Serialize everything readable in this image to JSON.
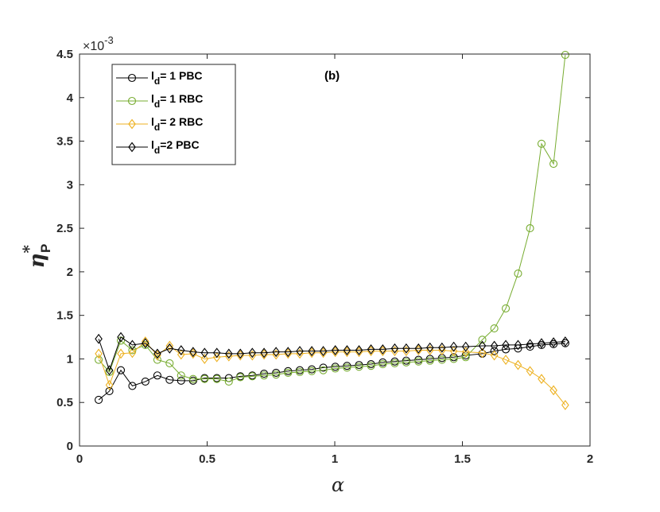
{
  "chart_data": {
    "type": "line",
    "title": "",
    "annotation": "(b)",
    "xlabel": "α",
    "ylabel": "η",
    "ylabel_sup": "*",
    "ylabel_sub": "P",
    "exponent_label": "×10",
    "exponent_power": "-3",
    "xlim": [
      0,
      2
    ],
    "ylim": [
      0,
      4.5
    ],
    "xticks": [
      0,
      0.5,
      1,
      1.5,
      2
    ],
    "xtick_labels": [
      "0",
      "0.5",
      "1",
      "1.5",
      "2"
    ],
    "yticks": [
      0,
      0.5,
      1,
      1.5,
      2,
      2.5,
      3,
      3.5,
      4,
      4.5
    ],
    "ytick_labels": [
      "0",
      "0.5",
      "1",
      "1.5",
      "2",
      "2.5",
      "3",
      "3.5",
      "4",
      "4.5"
    ],
    "grid": false,
    "legend_position": "top-left",
    "x": [
      0.075,
      0.117,
      0.162,
      0.207,
      0.258,
      0.305,
      0.353,
      0.398,
      0.445,
      0.49,
      0.538,
      0.585,
      0.63,
      0.677,
      0.723,
      0.77,
      0.817,
      0.863,
      0.91,
      0.955,
      1.002,
      1.048,
      1.095,
      1.142,
      1.188,
      1.235,
      1.28,
      1.328,
      1.373,
      1.42,
      1.466,
      1.513,
      1.578,
      1.625,
      1.67,
      1.718,
      1.765,
      1.81,
      1.857,
      1.903
    ],
    "series": [
      {
        "name": "l_d= 1 PBC",
        "legend_main": "l",
        "legend_sub": "d",
        "legend_rest": "= 1 PBC",
        "color": "#000000",
        "marker": "circle",
        "values": [
          0.53,
          0.63,
          0.87,
          0.69,
          0.74,
          0.81,
          0.76,
          0.75,
          0.75,
          0.78,
          0.78,
          0.78,
          0.8,
          0.81,
          0.83,
          0.84,
          0.86,
          0.87,
          0.88,
          0.9,
          0.91,
          0.92,
          0.93,
          0.94,
          0.96,
          0.97,
          0.98,
          0.99,
          1.0,
          1.01,
          1.02,
          1.04,
          1.06,
          1.09,
          1.11,
          1.12,
          1.14,
          1.16,
          1.17,
          1.18
        ]
      },
      {
        "name": "l_d= 1 RBC",
        "legend_main": "l",
        "legend_sub": "d",
        "legend_rest": "= 1 RBC",
        "color": "#77AC30",
        "marker": "circle",
        "values": [
          0.99,
          0.85,
          1.21,
          1.1,
          1.16,
          0.99,
          0.95,
          0.81,
          0.77,
          0.77,
          0.77,
          0.74,
          0.79,
          0.8,
          0.81,
          0.82,
          0.84,
          0.85,
          0.86,
          0.87,
          0.89,
          0.9,
          0.91,
          0.92,
          0.94,
          0.95,
          0.96,
          0.97,
          0.98,
          0.99,
          1.0,
          1.02,
          1.22,
          1.35,
          1.58,
          1.98,
          2.5,
          3.47,
          3.24,
          4.49
        ]
      },
      {
        "name": "l_d= 2 RBC",
        "legend_main": "l",
        "legend_sub": "d",
        "legend_rest": "= 2 RBC",
        "color": "#EDB120",
        "marker": "diamond",
        "values": [
          1.06,
          0.7,
          1.06,
          1.07,
          1.2,
          1.04,
          1.15,
          1.05,
          1.06,
          1.0,
          1.02,
          1.03,
          1.04,
          1.04,
          1.05,
          1.05,
          1.06,
          1.06,
          1.07,
          1.07,
          1.08,
          1.08,
          1.08,
          1.09,
          1.09,
          1.09,
          1.09,
          1.1,
          1.1,
          1.1,
          1.09,
          1.08,
          1.07,
          1.04,
          0.99,
          0.93,
          0.86,
          0.77,
          0.64,
          0.47
        ]
      },
      {
        "name": "l_d=2 PBC",
        "legend_main": "l",
        "legend_sub": "d",
        "legend_rest": "=2 PBC",
        "color": "#000000",
        "marker": "diamond",
        "values": [
          1.23,
          0.87,
          1.25,
          1.16,
          1.18,
          1.06,
          1.12,
          1.1,
          1.08,
          1.07,
          1.07,
          1.06,
          1.06,
          1.07,
          1.07,
          1.08,
          1.08,
          1.09,
          1.09,
          1.09,
          1.1,
          1.1,
          1.1,
          1.11,
          1.11,
          1.12,
          1.12,
          1.12,
          1.13,
          1.13,
          1.14,
          1.14,
          1.15,
          1.15,
          1.16,
          1.16,
          1.17,
          1.18,
          1.19,
          1.2
        ]
      }
    ]
  }
}
